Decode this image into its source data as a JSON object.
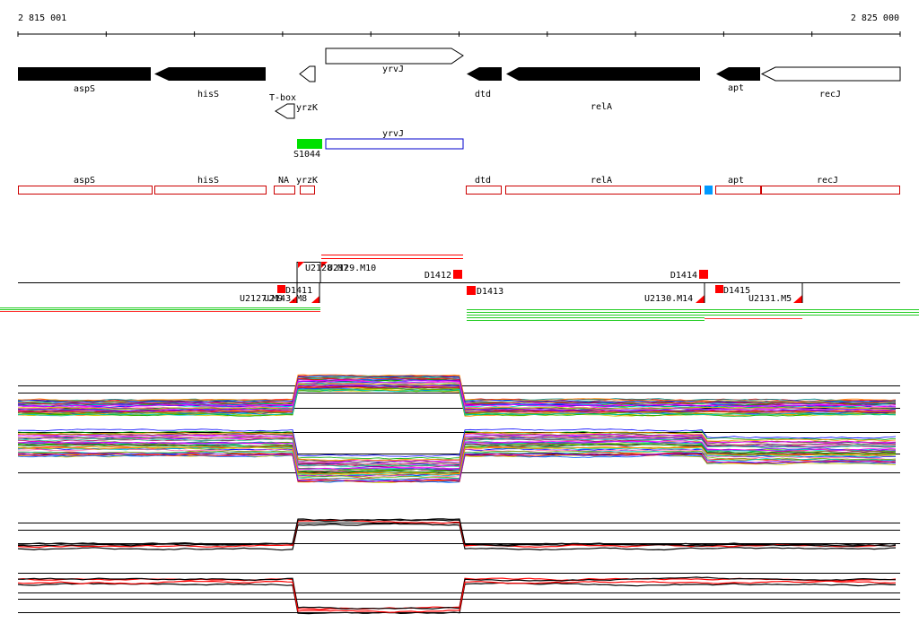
{
  "coords": {
    "start": "2 815 001",
    "end": "2 825 000"
  },
  "genes_top": [
    {
      "label": "aspS"
    },
    {
      "label": "hisS"
    },
    {
      "label": "T-box"
    },
    {
      "label": "yrvJ"
    },
    {
      "label": "dtd"
    },
    {
      "label": "relA"
    },
    {
      "label": "apt"
    },
    {
      "label": "recJ"
    },
    {
      "label": "yrzK"
    }
  ],
  "features_mid": [
    {
      "label": "S1044"
    },
    {
      "label": "yrvJ"
    }
  ],
  "transcripts": [
    {
      "label": "aspS"
    },
    {
      "label": "hisS"
    },
    {
      "label": "NA"
    },
    {
      "label": "yrzK"
    },
    {
      "label": "dtd"
    },
    {
      "label": "relA"
    },
    {
      "label": "apt"
    },
    {
      "label": "recJ"
    }
  ],
  "segments": [
    {
      "label": "U2128.M7"
    },
    {
      "label": "U2129.M10"
    },
    {
      "label": "D1412"
    },
    {
      "label": "D1414"
    },
    {
      "label": "D1411"
    },
    {
      "label": "U2127.M9"
    },
    {
      "label": "U2143.M8"
    },
    {
      "label": "D1413"
    },
    {
      "label": "D1415"
    },
    {
      "label": "U2130.M14"
    },
    {
      "label": "U2131.M5"
    }
  ],
  "colors": {
    "gene_fill": "#000000",
    "rna_fill": "#00e000",
    "transcript_outline": "#cc0000",
    "feature_outline": "#0000cc",
    "marker_red": "#ff0000",
    "small_marker": "#0099ff",
    "green_track": "#22cc22"
  }
}
